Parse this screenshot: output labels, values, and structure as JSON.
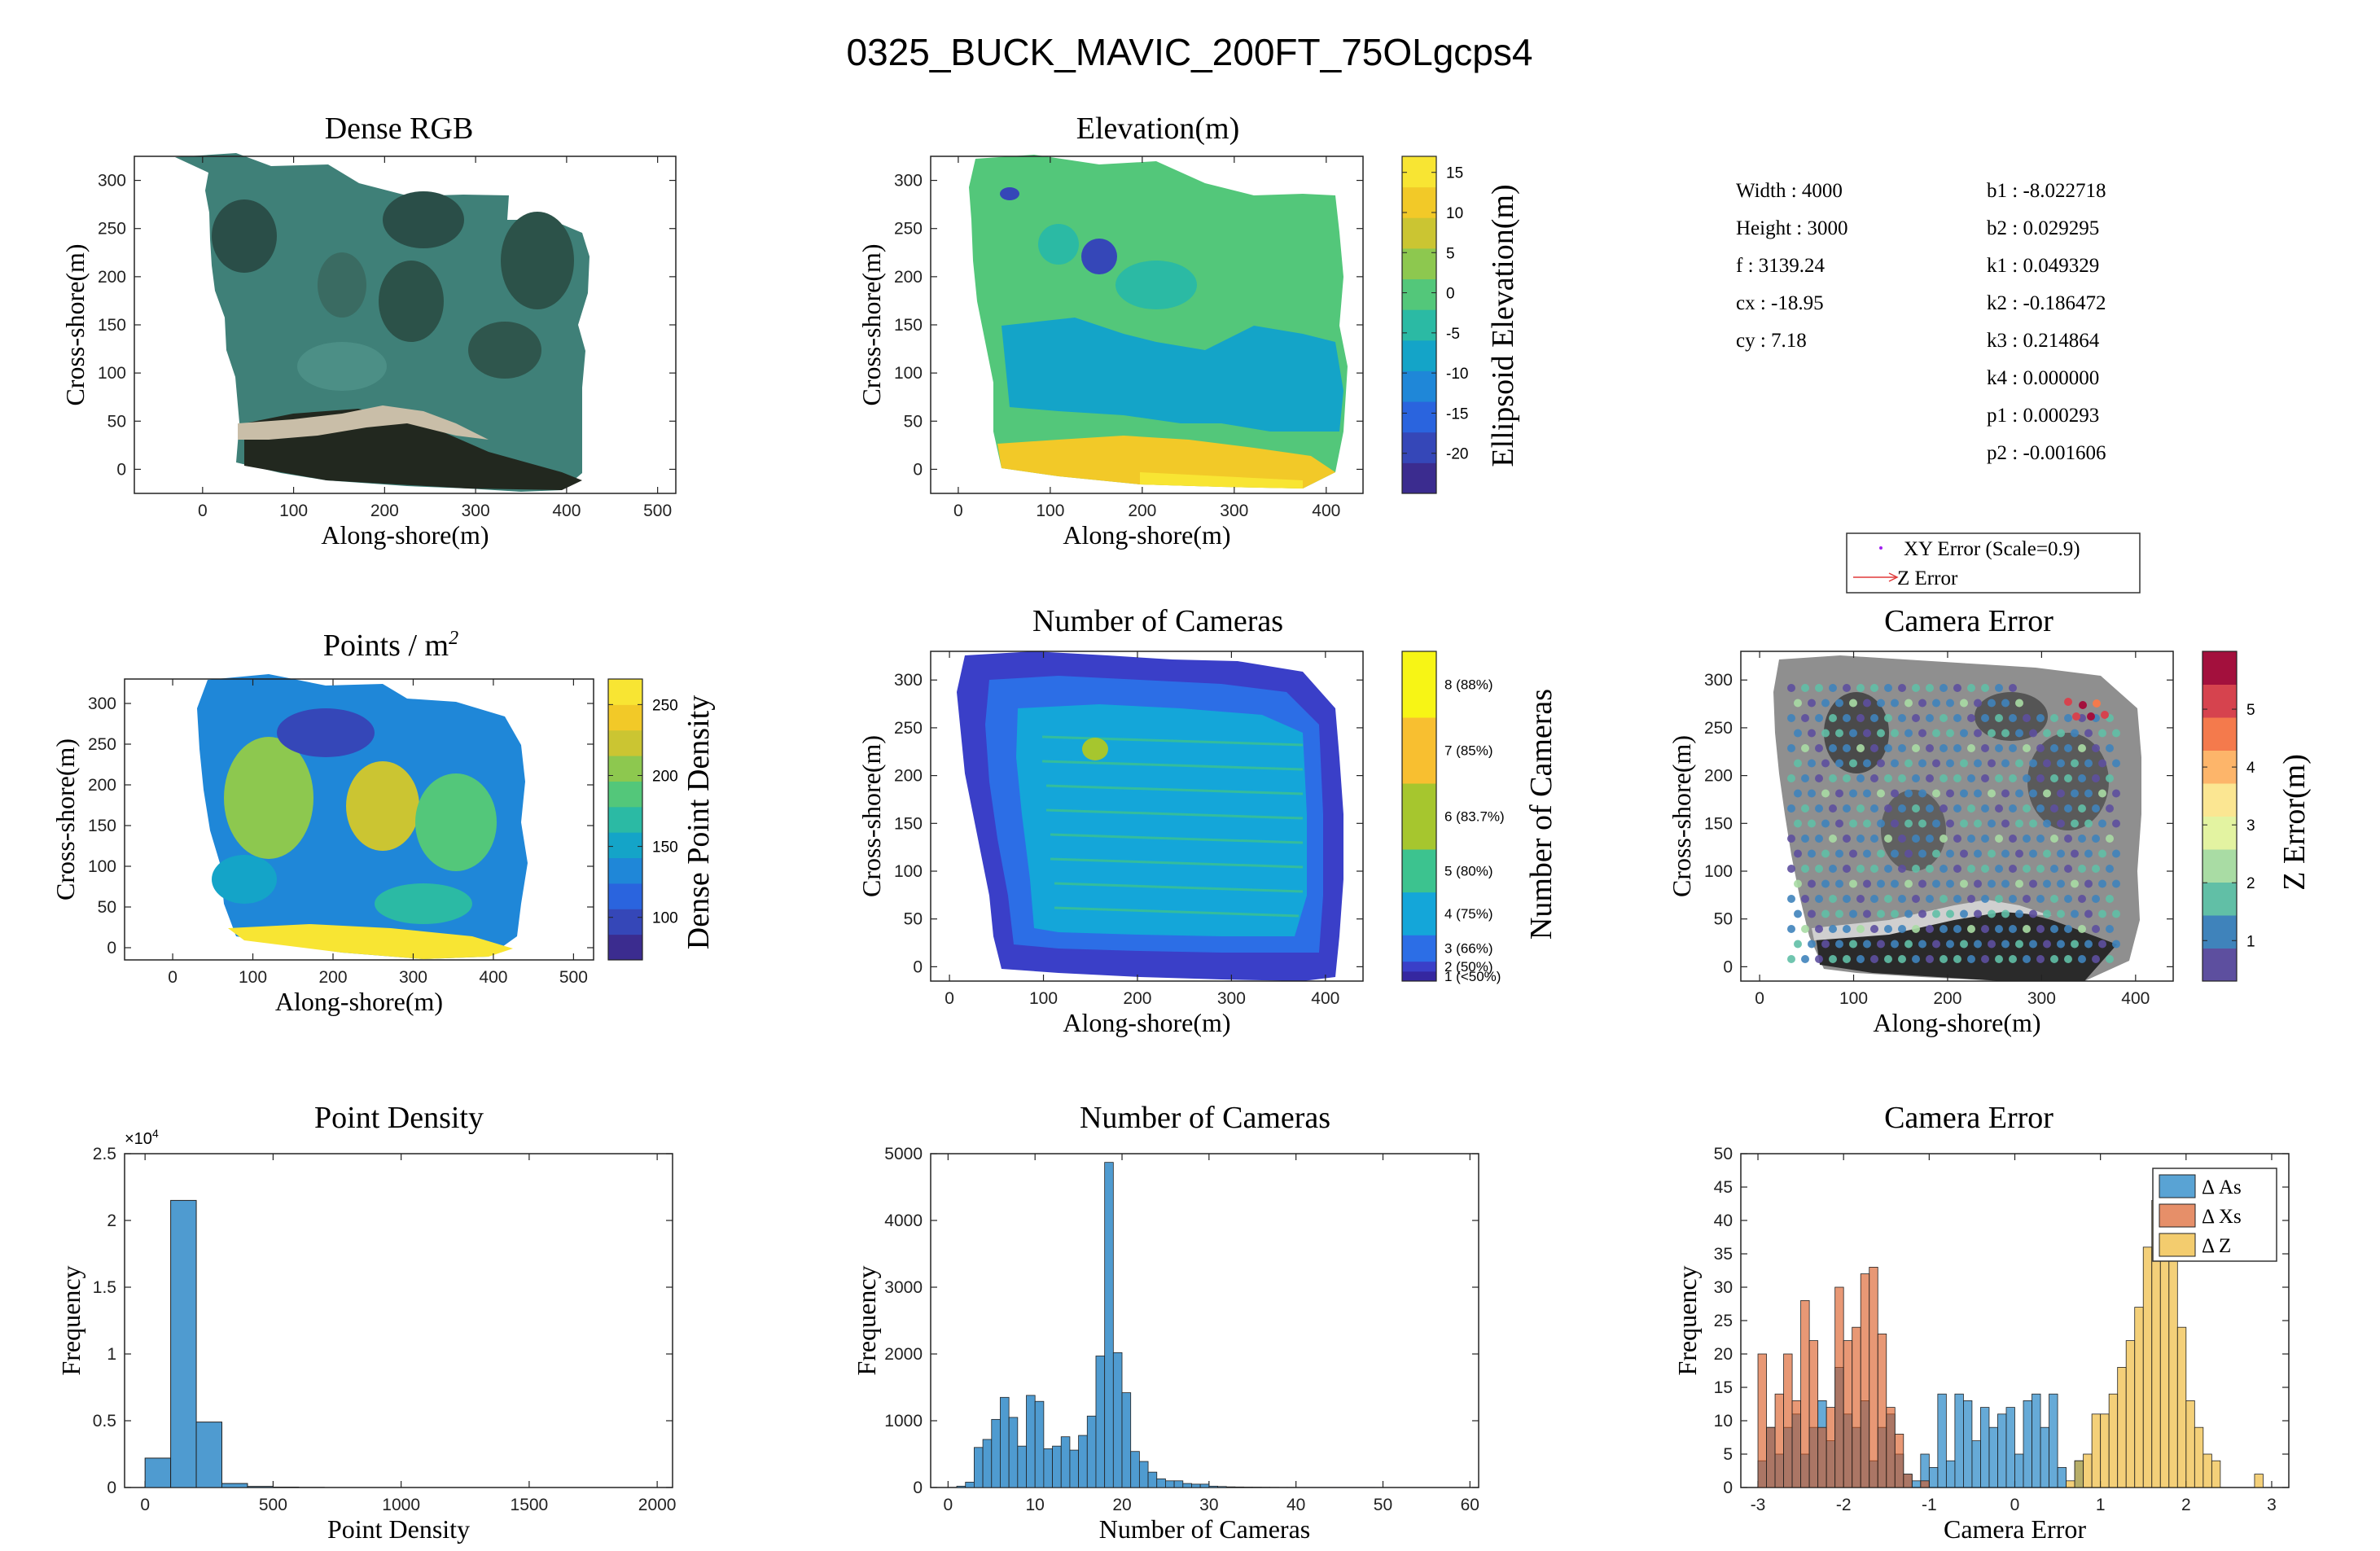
{
  "figure": {
    "title": "0325_BUCK_MAVIC_200FT_75OLgcps4"
  },
  "chart_data": [
    {
      "id": "dense_rgb",
      "type": "image",
      "title": "Dense RGB",
      "xlabel": "Along-shore(m)",
      "ylabel": "Cross-shore(m)",
      "xlim": [
        -75,
        520
      ],
      "ylim": [
        -25,
        325
      ],
      "xticks": [
        0,
        100,
        200,
        300,
        400,
        500
      ],
      "yticks": [
        0,
        50,
        100,
        150,
        200,
        250,
        300
      ]
    },
    {
      "id": "elevation",
      "type": "heatmap",
      "title": "Elevation(m)",
      "xlabel": "Along-shore(m)",
      "ylabel": "Cross-shore(m)",
      "colorbar_label": "Ellipsoid Elevation(m)",
      "xlim": [
        -30,
        440
      ],
      "ylim": [
        -25,
        325
      ],
      "xticks": [
        0,
        100,
        200,
        300,
        400
      ],
      "yticks": [
        0,
        50,
        100,
        150,
        200,
        250,
        300
      ],
      "clim": [
        -25,
        17
      ],
      "cticks": [
        -20,
        -15,
        -10,
        -5,
        0,
        5,
        10,
        15
      ],
      "colormap": [
        "#3b2c8f",
        "#3547b8",
        "#2a64de",
        "#1f87d8",
        "#14a4c8",
        "#2bbaa4",
        "#53c77a",
        "#8dc84f",
        "#cbc532",
        "#f2c928",
        "#f8e533"
      ]
    },
    {
      "id": "intrinsics",
      "type": "table",
      "rows_left": [
        "Width : 4000",
        "Height : 3000",
        "f : 3139.24",
        "cx : -18.95",
        "cy : 7.18"
      ],
      "rows_right": [
        "b1 : -8.022718",
        "b2 : 0.029295",
        "k1 : 0.049329",
        "k2 : -0.186472",
        "k3 : 0.214864",
        "k4 : 0.000000",
        "p1 : 0.000293",
        "p2 : -0.001606"
      ]
    },
    {
      "id": "point_density_map",
      "type": "heatmap",
      "title": "Points / m",
      "title_sup": "2",
      "xlabel": "Along-shore(m)",
      "ylabel": "Cross-shore(m)",
      "colorbar_label": "Dense Point Density",
      "xlim": [
        -60,
        525
      ],
      "ylim": [
        -15,
        330
      ],
      "xticks": [
        0,
        100,
        200,
        300,
        400,
        500
      ],
      "yticks": [
        0,
        50,
        100,
        150,
        200,
        250,
        300
      ],
      "clim": [
        70,
        268
      ],
      "cticks": [
        100,
        150,
        200,
        250
      ],
      "colormap": [
        "#3b2c8f",
        "#3547b8",
        "#2a64de",
        "#1f87d8",
        "#14a4c8",
        "#2bbaa4",
        "#53c77a",
        "#8dc84f",
        "#cbc532",
        "#f2c928",
        "#f8e533"
      ]
    },
    {
      "id": "num_cameras_map",
      "type": "heatmap",
      "title": "Number of Cameras",
      "xlabel": "Along-shore(m)",
      "ylabel": "Cross-shore(m)",
      "colorbar_label": "Number of Cameras",
      "xlim": [
        -20,
        440
      ],
      "ylim": [
        -15,
        330
      ],
      "xticks": [
        0,
        100,
        200,
        300,
        400
      ],
      "yticks": [
        0,
        50,
        100,
        150,
        200,
        250,
        300
      ],
      "levels": [
        {
          "label": "1 (<50%)",
          "color": "#3527a0"
        },
        {
          "label": "2 (50%)",
          "color": "#3a3fc8"
        },
        {
          "label": "3 (66%)",
          "color": "#2c6ee6"
        },
        {
          "label": "4 (75%)",
          "color": "#14a6d9"
        },
        {
          "label": "5 (80%)",
          "color": "#3cc38f"
        },
        {
          "label": "6 (83.7%)",
          "color": "#a6c62e"
        },
        {
          "label": "7 (85%)",
          "color": "#f8bf30"
        },
        {
          "label": "8 (88%)",
          "color": "#f7f515"
        }
      ],
      "level_fractions": [
        0.0,
        0.03,
        0.06,
        0.14,
        0.27,
        0.4,
        0.6,
        0.8,
        1.0
      ]
    },
    {
      "id": "camera_error_map",
      "type": "scatter",
      "title": "Camera Error",
      "xlabel": "Along-shore(m)",
      "ylabel": "Cross-shore(m)",
      "colorbar_label": "Z Error(m)",
      "legend": [
        "XY Error (Scale=0.9)",
        "Z Error"
      ],
      "legend_position": "top",
      "xlim": [
        -20,
        440
      ],
      "ylim": [
        -15,
        330
      ],
      "xticks": [
        0,
        100,
        200,
        300,
        400
      ],
      "yticks": [
        0,
        50,
        100,
        150,
        200,
        250,
        300
      ],
      "clim": [
        0.3,
        6
      ],
      "cticks": [
        1,
        2,
        3,
        4,
        5
      ],
      "colormap": [
        "#5d4f9f",
        "#3f83bb",
        "#61bfa6",
        "#a9dca4",
        "#e3f3a1",
        "#fbe692",
        "#fdb56a",
        "#f47a4c",
        "#d6434e",
        "#a3103d"
      ]
    },
    {
      "id": "hist_point_density",
      "type": "bar",
      "title": "Point Density",
      "xlabel": "Point Density",
      "ylabel": "Frequency",
      "xlim": [
        -80,
        2060
      ],
      "ylim": [
        0,
        25000
      ],
      "xticks": [
        0,
        500,
        1000,
        1500,
        2000
      ],
      "yticks": [
        0,
        5000,
        10000,
        15000,
        20000,
        25000
      ],
      "ytick_labels": [
        "0",
        "0.5",
        "1",
        "1.5",
        "2",
        "2.5"
      ],
      "y_exponent": "×10",
      "y_exponent_power": "4",
      "color": "#4f9bd0",
      "bins": [
        [
          0,
          100,
          2200
        ],
        [
          100,
          200,
          21500
        ],
        [
          200,
          300,
          4900
        ],
        [
          300,
          400,
          300
        ],
        [
          400,
          500,
          80
        ],
        [
          500,
          600,
          30
        ],
        [
          600,
          700,
          10
        ]
      ]
    },
    {
      "id": "hist_num_cameras",
      "type": "bar",
      "title": "Number of Cameras",
      "xlabel": "Number of Cameras",
      "ylabel": "Frequency",
      "xlim": [
        -2,
        61
      ],
      "ylim": [
        0,
        5000
      ],
      "xticks": [
        0,
        10,
        20,
        30,
        40,
        50,
        60
      ],
      "yticks": [
        0,
        1000,
        2000,
        3000,
        4000,
        5000
      ],
      "color": "#4f9bd0",
      "bin_width": 1,
      "bin_start": 0,
      "values": [
        0,
        20,
        80,
        600,
        720,
        1020,
        1350,
        1050,
        620,
        1380,
        1290,
        580,
        620,
        760,
        560,
        780,
        1070,
        1970,
        4870,
        2020,
        1420,
        540,
        390,
        230,
        130,
        100,
        100,
        60,
        50,
        50,
        20,
        15,
        10,
        8,
        6,
        5,
        4,
        3,
        2,
        2,
        1,
        1,
        1,
        1,
        1,
        1,
        1,
        1,
        1,
        0,
        0,
        0,
        0,
        0,
        0,
        0,
        0,
        0,
        0,
        0
      ]
    },
    {
      "id": "hist_camera_error",
      "type": "bar",
      "title": "Camera Error",
      "xlabel": "Camera Error",
      "ylabel": "Frequency",
      "xlim": [
        -3.2,
        3.2
      ],
      "ylim": [
        0,
        50
      ],
      "xticks": [
        -3,
        -2,
        -1,
        0,
        1,
        2,
        3
      ],
      "yticks": [
        0,
        5,
        10,
        15,
        20,
        25,
        30,
        35,
        40,
        45,
        50
      ],
      "legend_position": "top-right",
      "bin_width": 0.1,
      "bin_start": -3.0,
      "series": [
        {
          "name": "Δ As",
          "color": "#0072bd",
          "values": [
            4,
            9,
            5,
            9,
            11,
            5,
            9,
            13,
            7,
            18,
            11,
            9,
            13,
            4,
            9,
            11,
            5,
            2,
            1,
            5,
            3,
            14,
            4,
            14,
            13,
            7,
            12,
            9,
            11,
            12,
            5,
            13,
            14,
            9,
            14,
            3,
            0,
            4,
            0,
            0,
            0,
            0,
            0,
            0,
            0,
            0,
            0,
            0,
            0,
            0,
            0,
            0,
            0,
            0,
            0,
            0,
            0,
            0,
            0,
            0
          ]
        },
        {
          "name": "Δ Xs",
          "color": "#d95319",
          "values": [
            20,
            9,
            14,
            20,
            13,
            28,
            22,
            9,
            12,
            30,
            22,
            24,
            32,
            33,
            23,
            12,
            8,
            2,
            0,
            1,
            0,
            0,
            0,
            0,
            0,
            0,
            0,
            0,
            0,
            0,
            0,
            0,
            0,
            0,
            0,
            0,
            0,
            0,
            0,
            0,
            0,
            0,
            0,
            0,
            0,
            0,
            0,
            0,
            0,
            0,
            0,
            0,
            0,
            0,
            0,
            0,
            0,
            0,
            0,
            0
          ]
        },
        {
          "name": "Δ Z",
          "color": "#edb120",
          "values": [
            0,
            0,
            0,
            0,
            0,
            0,
            0,
            0,
            0,
            0,
            0,
            0,
            0,
            0,
            0,
            0,
            0,
            0,
            0,
            0,
            0,
            0,
            0,
            0,
            0,
            0,
            0,
            0,
            0,
            0,
            0,
            0,
            0,
            0,
            0,
            0,
            1,
            4,
            5,
            11,
            11,
            14,
            18,
            22,
            27,
            36,
            43,
            46,
            35,
            24,
            13,
            9,
            5,
            4,
            0,
            0,
            0,
            0,
            2,
            0
          ]
        }
      ]
    }
  ]
}
